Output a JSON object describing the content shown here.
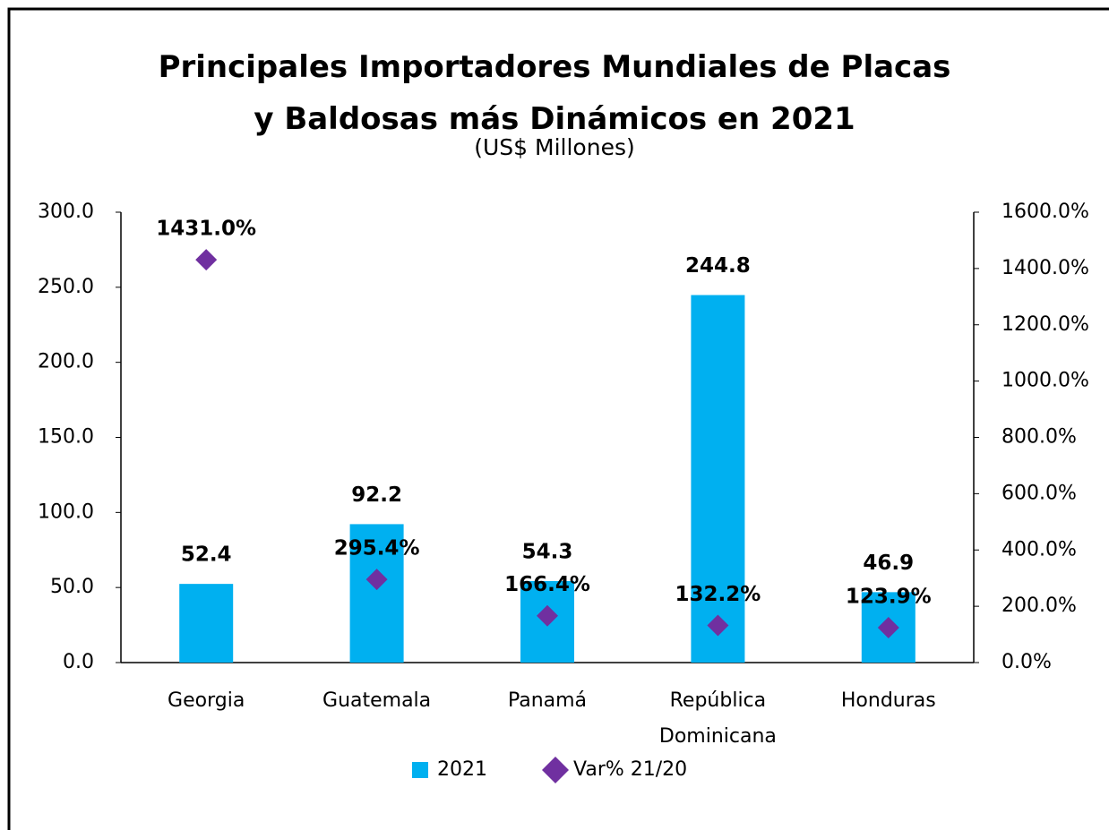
{
  "chart_data": {
    "type": "bar",
    "title": "Principales Importadores Mundiales de Placas y Baldosas más Dinámicos en 2021",
    "subtitle": "(US$ Millones)",
    "categories": [
      "Georgia",
      "Guatemala",
      "Panamá",
      "República Dominicana",
      "Honduras"
    ],
    "series": [
      {
        "name": "2021",
        "type": "bar",
        "color": "#00b0f0",
        "values": [
          52.4,
          92.2,
          54.3,
          244.8,
          46.9
        ],
        "value_labels": [
          "52.4",
          "92.2",
          "54.3",
          "244.8",
          "46.9"
        ]
      },
      {
        "name": "Var% 21/20",
        "type": "scatter",
        "axis": "y2",
        "color": "#7030a0",
        "values": [
          1431.0,
          295.4,
          166.4,
          132.2,
          123.9
        ],
        "value_labels": [
          "1431.0%",
          "295.4%",
          "166.4%",
          "132.2%",
          "123.9%"
        ]
      }
    ],
    "ylim": [
      0,
      300
    ],
    "yticks": [
      {
        "value": 0,
        "label": "0.0"
      },
      {
        "value": 50,
        "label": "50.0"
      },
      {
        "value": 100,
        "label": "100.0"
      },
      {
        "value": 150,
        "label": "150.0"
      },
      {
        "value": 200,
        "label": "200.0"
      },
      {
        "value": 250,
        "label": "250.0"
      },
      {
        "value": 300,
        "label": "300.0"
      }
    ],
    "y2lim": [
      0,
      1600
    ],
    "y2ticks": [
      {
        "value": 0,
        "label": "0.0%"
      },
      {
        "value": 200,
        "label": "200.0%"
      },
      {
        "value": 400,
        "label": "400.0%"
      },
      {
        "value": 600,
        "label": "600.0%"
      },
      {
        "value": 800,
        "label": "800.0%"
      },
      {
        "value": 1000,
        "label": "1000.0%"
      },
      {
        "value": 1200,
        "label": "1200.0%"
      },
      {
        "value": 1400,
        "label": "1400.0%"
      },
      {
        "value": 1600,
        "label": "1600.0%"
      }
    ],
    "legend": "bottom",
    "grid": false
  }
}
